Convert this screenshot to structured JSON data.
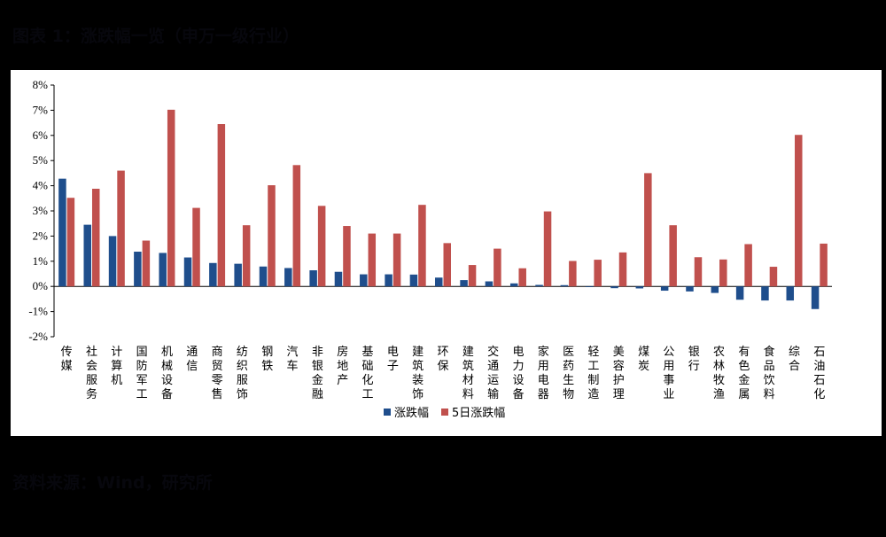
{
  "figure": {
    "title": "图表 1：涨跌幅一览（申万一级行业）",
    "source": "资料来源：Wind，研究所"
  },
  "colors": {
    "series1": "#1f4e8c",
    "series2": "#c0504d",
    "axis": "#000000"
  },
  "chart_data": {
    "type": "bar",
    "categories": [
      "传媒",
      "社会服务",
      "计算机",
      "国防军工",
      "机械设备",
      "通信",
      "商贸零售",
      "纺织服饰",
      "钢铁",
      "汽车",
      "非银金融",
      "房地产",
      "基础化工",
      "电子",
      "建筑装饰",
      "环保",
      "建筑材料",
      "交通运输",
      "电力设备",
      "家用电器",
      "医药生物",
      "轻工制造",
      "美容护理",
      "煤炭",
      "公用事业",
      "银行",
      "农林牧渔",
      "有色金属",
      "食品饮料",
      "综合",
      "石油石化"
    ],
    "series": [
      {
        "name": "涨跌幅",
        "values": [
          4.28,
          2.45,
          2.0,
          1.38,
          1.33,
          1.15,
          0.93,
          0.9,
          0.79,
          0.73,
          0.64,
          0.58,
          0.48,
          0.48,
          0.47,
          0.35,
          0.25,
          0.2,
          0.12,
          0.06,
          0.05,
          -0.02,
          -0.07,
          -0.08,
          -0.17,
          -0.2,
          -0.26,
          -0.53,
          -0.56,
          -0.56,
          -0.9
        ]
      },
      {
        "name": "5日涨跌幅",
        "values": [
          3.52,
          3.88,
          4.6,
          1.82,
          7.02,
          3.12,
          6.45,
          2.43,
          4.02,
          4.82,
          3.2,
          2.4,
          2.1,
          2.1,
          3.24,
          1.72,
          0.85,
          1.5,
          0.72,
          2.98,
          1.01,
          1.06,
          1.35,
          4.5,
          2.43,
          1.16,
          1.07,
          1.68,
          0.78,
          6.02,
          1.7
        ]
      }
    ],
    "y_ticks": [
      "8%",
      "7%",
      "6%",
      "5%",
      "4%",
      "3%",
      "2%",
      "1%",
      "0%",
      "-1%",
      "-2%"
    ],
    "ylim": [
      -2,
      8
    ],
    "ylabel": "",
    "xlabel": "",
    "legend_position": "bottom-center",
    "grid": false
  }
}
